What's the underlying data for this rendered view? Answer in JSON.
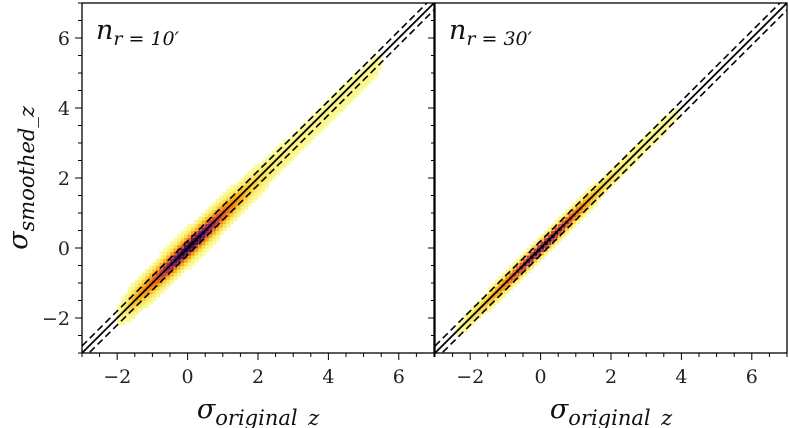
{
  "chart_data": {
    "type": "heatmap",
    "xlabel_main": "σ",
    "xlabel_sub": "original_z",
    "ylabel_main": "σ",
    "ylabel_sub": "smoothed_z",
    "xlim": [
      -3,
      7
    ],
    "ylim": [
      -3,
      7
    ],
    "xticks": [
      -2,
      0,
      2,
      4,
      6
    ],
    "yticks": [
      -2,
      0,
      2,
      4,
      6
    ],
    "xtick_labels": [
      "−2",
      "0",
      "2",
      "4",
      "6"
    ],
    "ytick_labels": [
      "−2",
      "0",
      "2",
      "4",
      "6"
    ],
    "reference_lines": {
      "identity_slope": 1,
      "dashed_offsets": [
        -0.2,
        0.2
      ]
    },
    "panels": [
      {
        "label_main": "n",
        "label_sub": "r = 10′",
        "density_extent_x": [
          -2.1,
          5.6
        ],
        "spread": 0.34,
        "line_slope": 0.97
      },
      {
        "label_main": "n",
        "label_sub": "r = 30′",
        "density_extent_x": [
          -2.5,
          4.0
        ],
        "spread": 0.2,
        "line_slope": 1.0
      }
    ]
  }
}
